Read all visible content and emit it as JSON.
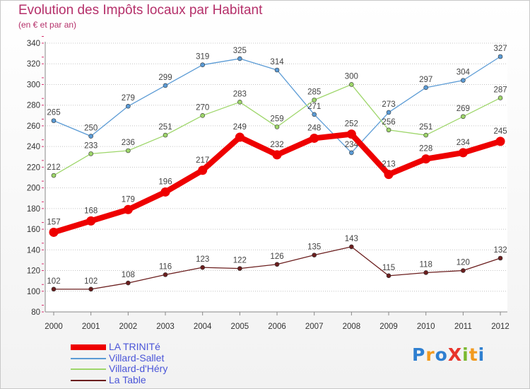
{
  "title": "Evolution des Impôts locaux par Habitant",
  "subtitle": "(en € et par an)",
  "logo": {
    "text": "ProXiti",
    "letter_colors": [
      "#2e7fd0",
      "#f29a1e",
      "#2e7fd0",
      "#e8332a",
      "#7ab92f",
      "#f29a1e",
      "#2e7fd0"
    ]
  },
  "chart_data": {
    "type": "line",
    "title": "Evolution des Impôts locaux par Habitant",
    "subtitle": "(en € et par an)",
    "xlabel": "",
    "ylabel": "",
    "x": [
      "2000",
      "2001",
      "2002",
      "2003",
      "2004",
      "2005",
      "2006",
      "2007",
      "2008",
      "2009",
      "2010",
      "2011",
      "2012"
    ],
    "ylim": [
      80,
      340
    ],
    "yticks": [
      80,
      100,
      120,
      140,
      160,
      180,
      200,
      220,
      240,
      260,
      280,
      300,
      320,
      340
    ],
    "grid": "horizontal dotted",
    "legend_position": "bottom-left",
    "series": [
      {
        "name": "LA TRINITé",
        "color": "#ee0000",
        "emphasis": true,
        "values": [
          157,
          168,
          179,
          196,
          217,
          249,
          232,
          248,
          252,
          213,
          228,
          234,
          245
        ]
      },
      {
        "name": "Villard-Sallet",
        "color": "#5b9bd5",
        "emphasis": false,
        "values": [
          265,
          250,
          279,
          299,
          319,
          325,
          314,
          271,
          234,
          273,
          297,
          304,
          327
        ]
      },
      {
        "name": "Villard-d'Héry",
        "color": "#9ed66a",
        "emphasis": false,
        "values": [
          212,
          233,
          236,
          251,
          270,
          283,
          259,
          285,
          300,
          256,
          251,
          269,
          287
        ]
      },
      {
        "name": "La Table",
        "color": "#6b1e1e",
        "emphasis": false,
        "values": [
          102,
          102,
          108,
          116,
          123,
          122,
          126,
          135,
          143,
          115,
          118,
          120,
          132
        ]
      }
    ]
  }
}
